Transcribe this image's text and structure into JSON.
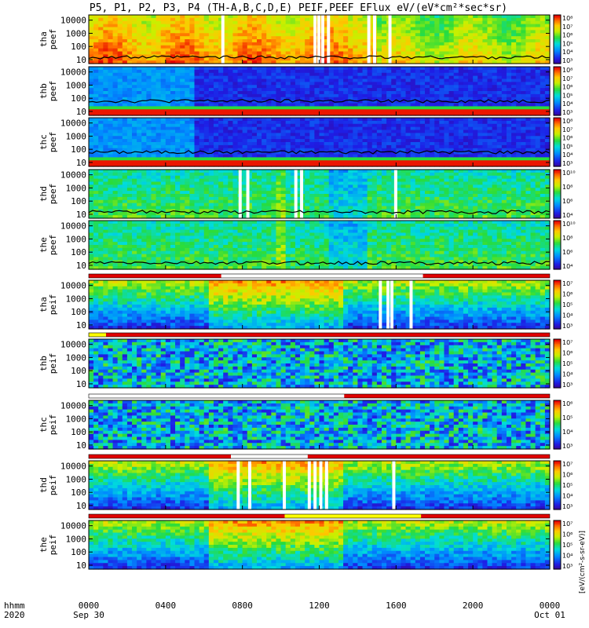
{
  "chart_data": {
    "type": "heatmap",
    "title": "P5, P1, P2, P3, P4 (TH-A,B,C,D,E) PEIF,PEEF EFlux eV/(eV*cm²*sec*sr)",
    "time_axis": {
      "row_label_top": "hhmm",
      "row_label_bottom": "2020",
      "ticks": [
        {
          "hours": 0,
          "label": "0000",
          "sub": "Sep 30"
        },
        {
          "hours": 4,
          "label": "0400",
          "sub": ""
        },
        {
          "hours": 8,
          "label": "0800",
          "sub": ""
        },
        {
          "hours": 12,
          "label": "1200",
          "sub": ""
        },
        {
          "hours": 16,
          "label": "1600",
          "sub": ""
        },
        {
          "hours": 20,
          "label": "2000",
          "sub": ""
        },
        {
          "hours": 24,
          "label": "0000",
          "sub": "Oct 01"
        }
      ],
      "range_hours": [
        0,
        24
      ]
    },
    "energy_axis": {
      "scale": "log",
      "range": [
        5,
        25000
      ],
      "ticks": [
        10,
        100,
        1000,
        10000
      ],
      "tick_labels": [
        "10",
        "100",
        "1000",
        "10000"
      ]
    },
    "colorbar_label": "[eV/(cm²-s-sr-eV)]",
    "panels": [
      {
        "probe": "tha",
        "species": "peef",
        "colorbar": {
          "min_exp": 3,
          "max_exp": 8,
          "labels": [
            "10³",
            "10⁴",
            "10⁵",
            "10⁶",
            "10⁷",
            "10⁸"
          ]
        },
        "dominant": "red-orange",
        "low_energy_line": true,
        "white_gaps_hours": [
          6.9,
          11.7,
          11.9,
          12.1,
          12.4,
          14.5,
          14.8,
          15.6
        ]
      },
      {
        "probe": "thb",
        "species": "peef",
        "colorbar": {
          "min_exp": 3,
          "max_exp": 8,
          "labels": [
            "10³",
            "10⁴",
            "10⁵",
            "10⁶",
            "10⁷",
            "10⁸"
          ]
        },
        "dominant": "blue",
        "low_energy_line": true,
        "white_gaps_hours": []
      },
      {
        "probe": "thc",
        "species": "peef",
        "colorbar": {
          "min_exp": 3,
          "max_exp": 8,
          "labels": [
            "10³",
            "10⁴",
            "10⁵",
            "10⁶",
            "10⁷",
            "10⁸"
          ]
        },
        "dominant": "blue",
        "low_energy_line": true,
        "white_gaps_hours": []
      },
      {
        "probe": "thd",
        "species": "peef",
        "colorbar": {
          "min_exp": 4,
          "max_exp": 10,
          "labels": [
            "10⁴",
            "10⁶",
            "10⁸",
            "10¹⁰"
          ]
        },
        "dominant": "green",
        "low_energy_line": true,
        "white_gaps_hours": [
          7.8,
          8.2,
          10.7,
          11.0,
          15.9
        ]
      },
      {
        "probe": "the",
        "species": "peef",
        "colorbar": {
          "min_exp": 4,
          "max_exp": 10,
          "labels": [
            "10⁴",
            "10⁶",
            "10⁸",
            "10¹⁰"
          ]
        },
        "dominant": "green",
        "low_energy_line": true,
        "white_gaps_hours": []
      },
      {
        "probe": "tha",
        "species": "peif",
        "colorbar": {
          "min_exp": 3,
          "max_exp": 7,
          "labels": [
            "10³",
            "10⁴",
            "10⁵",
            "10⁶",
            "10⁷"
          ]
        },
        "dominant": "green-blue",
        "low_energy_line": false,
        "white_gaps_hours": [
          15.1,
          15.5,
          15.7,
          16.7
        ]
      },
      {
        "probe": "thb",
        "species": "peif",
        "colorbar": {
          "min_exp": 3,
          "max_exp": 7,
          "labels": [
            "10³",
            "10⁴",
            "10⁵",
            "10⁶",
            "10⁷"
          ]
        },
        "dominant": "cyan-noise",
        "low_energy_line": false,
        "white_gaps_hours": []
      },
      {
        "probe": "thc",
        "species": "peif",
        "colorbar": {
          "min_exp": 3,
          "max_exp": 6,
          "labels": [
            "10³",
            "10⁴",
            "10⁵",
            "10⁶"
          ]
        },
        "dominant": "cyan-noise",
        "low_energy_line": false,
        "white_gaps_hours": []
      },
      {
        "probe": "thd",
        "species": "peif",
        "colorbar": {
          "min_exp": 3,
          "max_exp": 7,
          "labels": [
            "10³",
            "10⁴",
            "10⁵",
            "10⁶",
            "10⁷"
          ]
        },
        "dominant": "green-blue",
        "low_energy_line": false,
        "white_gaps_hours": [
          7.7,
          8.3,
          10.1,
          11.4,
          11.7,
          12.0,
          12.3,
          15.8
        ]
      },
      {
        "probe": "the",
        "species": "peif",
        "colorbar": {
          "min_exp": 3,
          "max_exp": 7,
          "labels": [
            "10³",
            "10⁴",
            "10⁵",
            "10⁶",
            "10⁷"
          ]
        },
        "dominant": "green-blue",
        "low_energy_line": false,
        "white_gaps_hours": []
      }
    ],
    "mode_bars": [
      {
        "above_panel": 5,
        "segments": [
          {
            "from": 0,
            "to": 6.9,
            "color": "#e00000"
          },
          {
            "from": 6.9,
            "to": 17.4,
            "color": "#ffffff"
          },
          {
            "from": 17.4,
            "to": 24,
            "color": "#e00000"
          }
        ]
      },
      {
        "above_panel": 6,
        "segments": [
          {
            "from": 0,
            "to": 0.9,
            "color": "#ffff00"
          },
          {
            "from": 0.9,
            "to": 24,
            "color": "#e00000"
          }
        ]
      },
      {
        "above_panel": 7,
        "segments": [
          {
            "from": 0,
            "to": 13.3,
            "color": "#ffffff"
          },
          {
            "from": 13.3,
            "to": 24,
            "color": "#e00000"
          }
        ]
      },
      {
        "above_panel": 8,
        "segments": [
          {
            "from": 0,
            "to": 7.4,
            "color": "#e00000"
          },
          {
            "from": 7.4,
            "to": 11.4,
            "color": "#ffffff"
          },
          {
            "from": 11.4,
            "to": 24,
            "color": "#e00000"
          }
        ]
      },
      {
        "above_panel": 9,
        "segments": [
          {
            "from": 0,
            "to": 10.2,
            "color": "#e00000"
          },
          {
            "from": 10.2,
            "to": 17.3,
            "color": "#ffff00"
          },
          {
            "from": 17.3,
            "to": 24,
            "color": "#e00000"
          }
        ]
      }
    ]
  }
}
